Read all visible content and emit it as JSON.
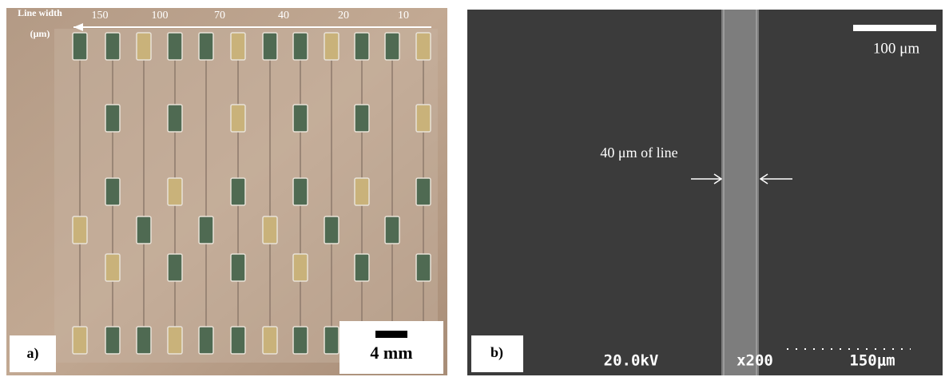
{
  "panel_a": {
    "label": "a)",
    "line_width_label": "Line width",
    "unit_label": "(μm)",
    "widths": [
      150,
      100,
      70,
      40,
      20,
      10
    ],
    "scale_bar": "4 mm"
  },
  "panel_b": {
    "label": "b)",
    "scale_bar": "100 μm",
    "annotation": "40 μm of line",
    "voltage": "20.0kV",
    "magnification": "x200",
    "marker": "150μm"
  }
}
